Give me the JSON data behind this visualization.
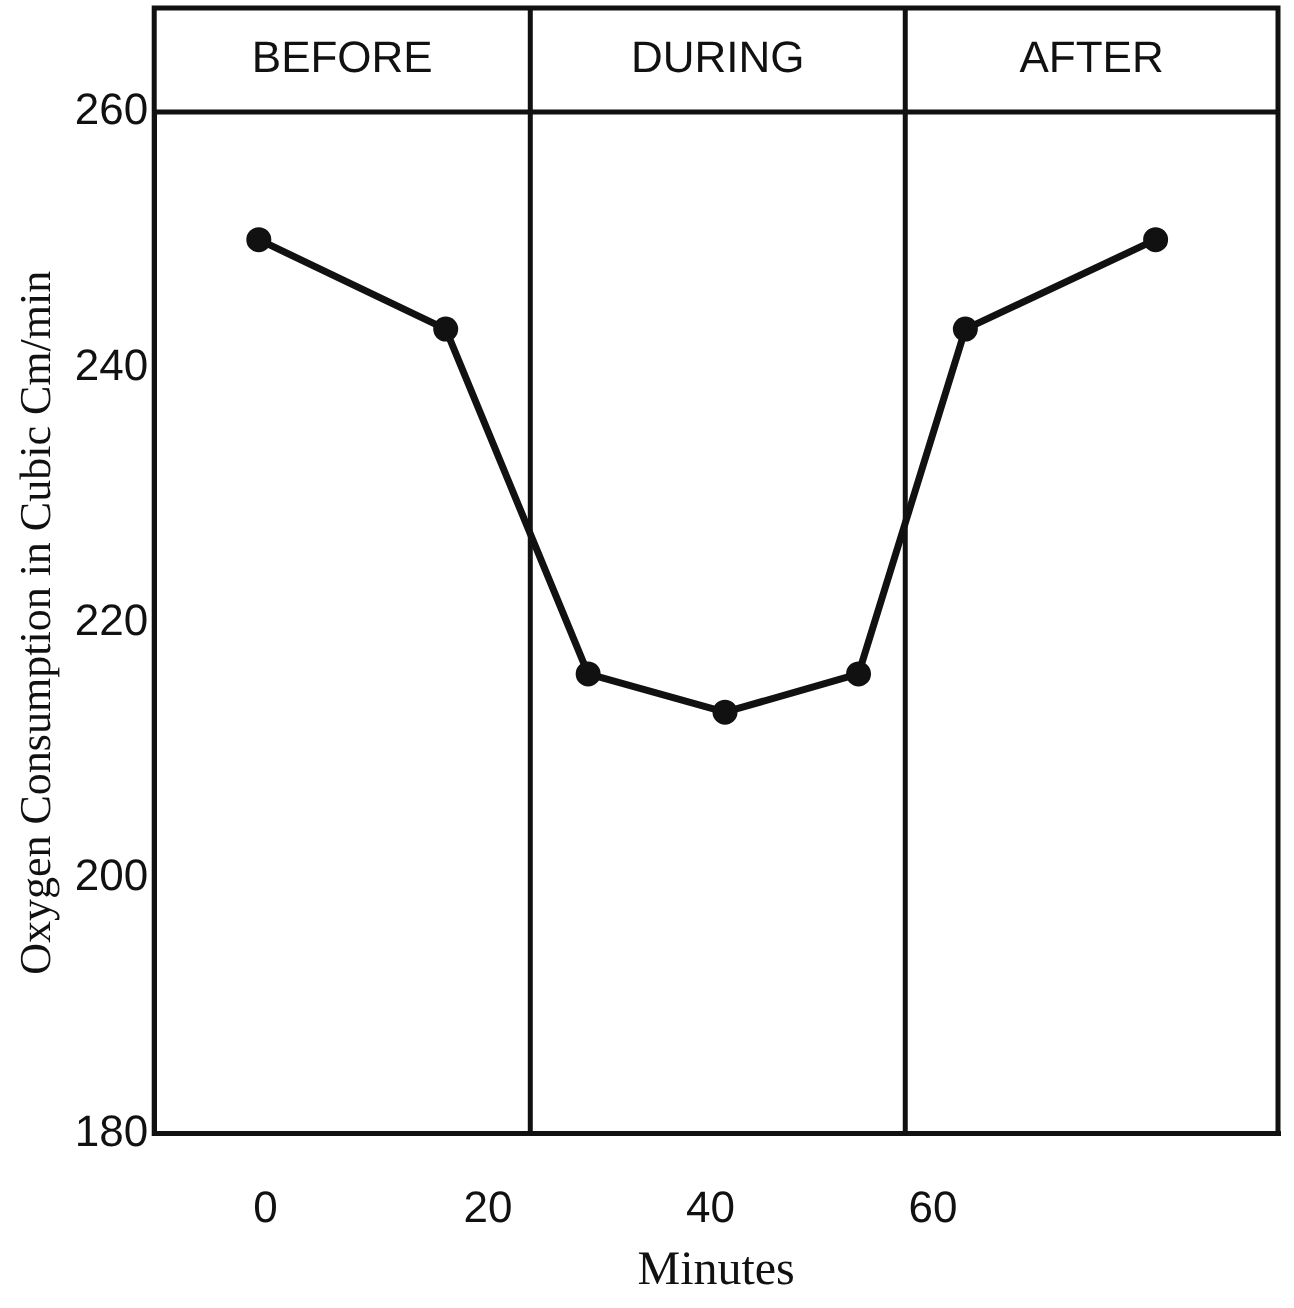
{
  "chart_data": {
    "type": "line",
    "xlabel": "Minutes",
    "ylabel": "Oxygen Consumption in Cubic Cm/min",
    "x": [
      -0.6,
      16.2,
      29,
      41.3,
      53.3,
      62.9,
      80
    ],
    "series": [
      {
        "color": "#111111",
        "values": [
          250,
          243,
          216,
          213,
          216,
          243,
          250
        ]
      }
    ],
    "xlim": [
      -10,
      91
    ],
    "xticks": [
      0,
      20,
      40,
      60
    ],
    "ylim": [
      180,
      260
    ],
    "yticks": [
      180,
      200,
      220,
      240,
      260
    ],
    "ref_lines": [
      {
        "axis": "x",
        "value": 23.8,
        "color": "#111111"
      },
      {
        "axis": "x",
        "value": 57.5,
        "color": "#111111"
      }
    ],
    "annotations": [
      "BEFORE",
      "DURING",
      "AFTER"
    ],
    "grid": false,
    "legend": false,
    "marker": "circle",
    "line_style": "solid"
  }
}
